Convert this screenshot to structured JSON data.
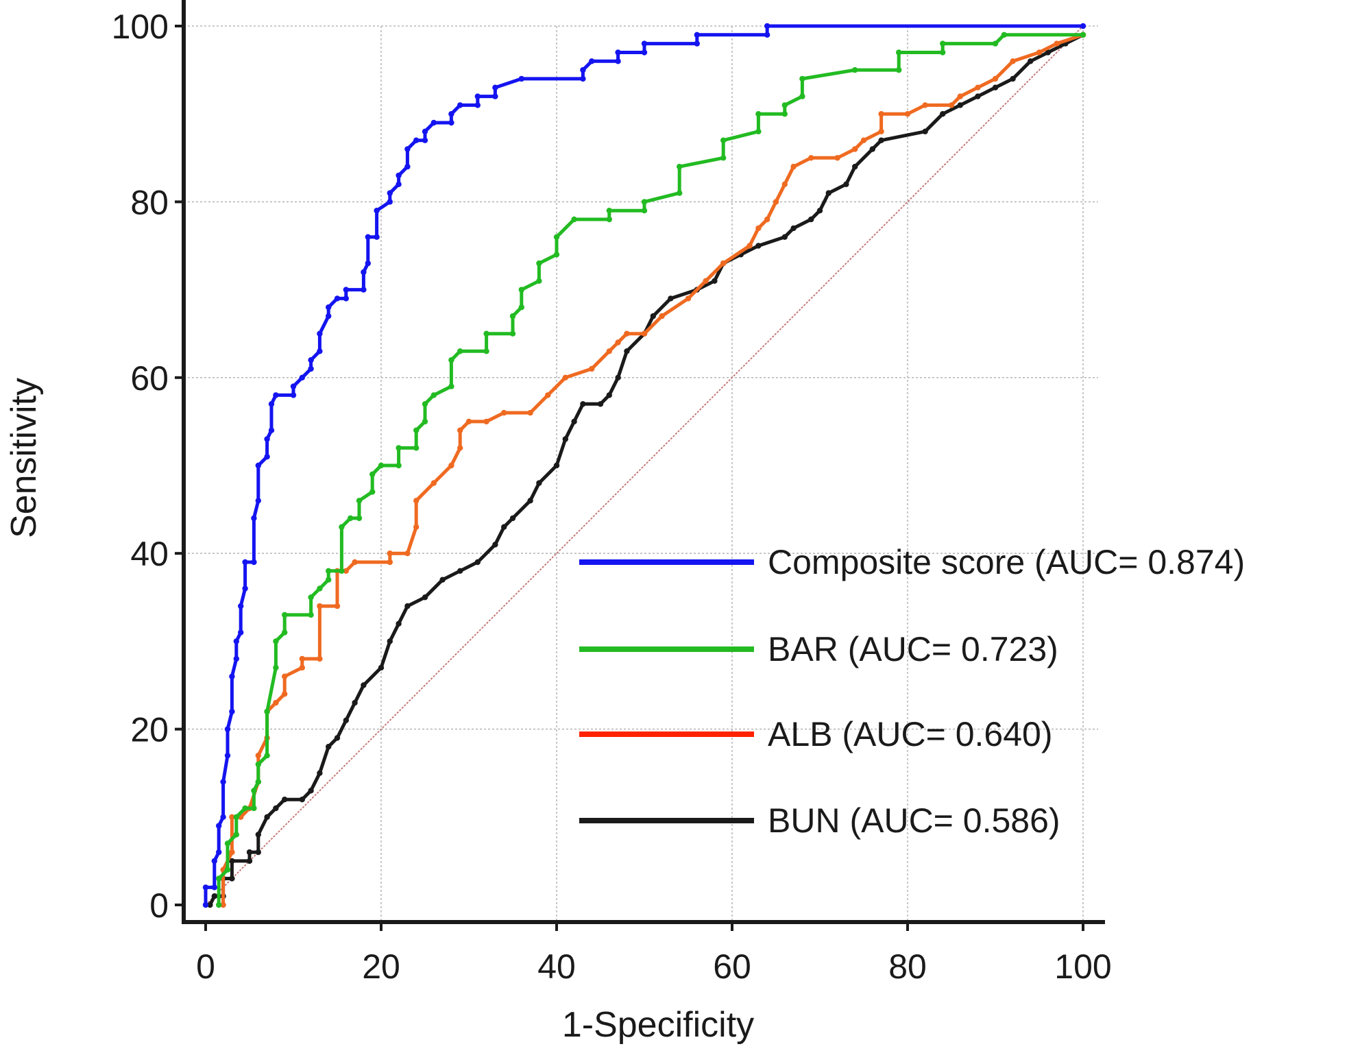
{
  "chart_data": {
    "type": "line",
    "xlabel": "1-Specificity",
    "ylabel": "Sensitivity",
    "xlim": [
      0,
      100
    ],
    "ylim": [
      0,
      100
    ],
    "x_ticks": [
      "0",
      "20",
      "40",
      "60",
      "80",
      "100"
    ],
    "y_ticks": [
      "0",
      "20",
      "40",
      "60",
      "80",
      "100"
    ],
    "grid": true,
    "legend_position": "lower-right",
    "reference_line": {
      "x": [
        0,
        100
      ],
      "y": [
        0,
        100
      ],
      "color": "#c0706f"
    },
    "series": [
      {
        "name": "Composite score (AUC= 0.874)",
        "color": "#1414f0",
        "points": [
          [
            0,
            0
          ],
          [
            0,
            2
          ],
          [
            1,
            2
          ],
          [
            1,
            5
          ],
          [
            1.5,
            6
          ],
          [
            1.5,
            9
          ],
          [
            2,
            10
          ],
          [
            2,
            14
          ],
          [
            2.5,
            17
          ],
          [
            2.5,
            20
          ],
          [
            3,
            22
          ],
          [
            3,
            26
          ],
          [
            3.5,
            28
          ],
          [
            3.5,
            30
          ],
          [
            4,
            31
          ],
          [
            4,
            34
          ],
          [
            4.5,
            36
          ],
          [
            4.5,
            39
          ],
          [
            5.5,
            39
          ],
          [
            5.5,
            44
          ],
          [
            6,
            46
          ],
          [
            6,
            50
          ],
          [
            7,
            51
          ],
          [
            7,
            53
          ],
          [
            7.5,
            54
          ],
          [
            7.5,
            57
          ],
          [
            8,
            58
          ],
          [
            10,
            58
          ],
          [
            10,
            59
          ],
          [
            11,
            60
          ],
          [
            12,
            61
          ],
          [
            12,
            62
          ],
          [
            13,
            63
          ],
          [
            13,
            65
          ],
          [
            14,
            67
          ],
          [
            14,
            68
          ],
          [
            15,
            69
          ],
          [
            16,
            69
          ],
          [
            16,
            70
          ],
          [
            18,
            70
          ],
          [
            18,
            72
          ],
          [
            18.5,
            73
          ],
          [
            18.5,
            76
          ],
          [
            19.5,
            76
          ],
          [
            19.5,
            79
          ],
          [
            21,
            80
          ],
          [
            21,
            81
          ],
          [
            22,
            82
          ],
          [
            22,
            83
          ],
          [
            23,
            84
          ],
          [
            23,
            86
          ],
          [
            24,
            87
          ],
          [
            25,
            87
          ],
          [
            25,
            88
          ],
          [
            26,
            89
          ],
          [
            28,
            89
          ],
          [
            28,
            90
          ],
          [
            29,
            91
          ],
          [
            31,
            91
          ],
          [
            31,
            92
          ],
          [
            33,
            92
          ],
          [
            33,
            93
          ],
          [
            36,
            94
          ],
          [
            43,
            94
          ],
          [
            43,
            95
          ],
          [
            44,
            96
          ],
          [
            47,
            96
          ],
          [
            47,
            97
          ],
          [
            50,
            97
          ],
          [
            50,
            98
          ],
          [
            56,
            98
          ],
          [
            56,
            99
          ],
          [
            64,
            99
          ],
          [
            64,
            100
          ],
          [
            100,
            100
          ]
        ]
      },
      {
        "name": "BAR (AUC= 0.723)",
        "color": "#22bb22",
        "points": [
          [
            1.5,
            0
          ],
          [
            1.5,
            3
          ],
          [
            2.5,
            4
          ],
          [
            2.5,
            7
          ],
          [
            3.5,
            8
          ],
          [
            3.5,
            10
          ],
          [
            4.5,
            11
          ],
          [
            5.5,
            11
          ],
          [
            5.5,
            13
          ],
          [
            6,
            14
          ],
          [
            6,
            16
          ],
          [
            7,
            17
          ],
          [
            7,
            22
          ],
          [
            8,
            27
          ],
          [
            8,
            30
          ],
          [
            9,
            31
          ],
          [
            9,
            33
          ],
          [
            12,
            33
          ],
          [
            12,
            35
          ],
          [
            13,
            36
          ],
          [
            14,
            37
          ],
          [
            14,
            38
          ],
          [
            15.5,
            38
          ],
          [
            15.5,
            43
          ],
          [
            16.5,
            44
          ],
          [
            17.5,
            44
          ],
          [
            17.5,
            46
          ],
          [
            19,
            47
          ],
          [
            19,
            49
          ],
          [
            20,
            50
          ],
          [
            22,
            50
          ],
          [
            22,
            52
          ],
          [
            24,
            52
          ],
          [
            24,
            54
          ],
          [
            25,
            55
          ],
          [
            25,
            57
          ],
          [
            26,
            58
          ],
          [
            28,
            59
          ],
          [
            28,
            62
          ],
          [
            29,
            63
          ],
          [
            32,
            63
          ],
          [
            32,
            65
          ],
          [
            35,
            65
          ],
          [
            35,
            67
          ],
          [
            36,
            68
          ],
          [
            36,
            70
          ],
          [
            38,
            71
          ],
          [
            38,
            73
          ],
          [
            40,
            74
          ],
          [
            40,
            76
          ],
          [
            42,
            78
          ],
          [
            46,
            78
          ],
          [
            46,
            79
          ],
          [
            50,
            79
          ],
          [
            50,
            80
          ],
          [
            54,
            81
          ],
          [
            54,
            84
          ],
          [
            59,
            85
          ],
          [
            59,
            87
          ],
          [
            63,
            88
          ],
          [
            63,
            90
          ],
          [
            66,
            90
          ],
          [
            66,
            91
          ],
          [
            68,
            92
          ],
          [
            68,
            94
          ],
          [
            74,
            95
          ],
          [
            79,
            95
          ],
          [
            79,
            97
          ],
          [
            84,
            97
          ],
          [
            84,
            98
          ],
          [
            90,
            98
          ],
          [
            91,
            99
          ],
          [
            100,
            99
          ]
        ]
      },
      {
        "name": "ALB (AUC= 0.640)",
        "color": "#ff2200",
        "line_color": "#ef6a21",
        "points": [
          [
            2,
            0
          ],
          [
            2,
            4
          ],
          [
            3,
            6
          ],
          [
            3,
            10
          ],
          [
            4,
            10
          ],
          [
            5,
            11
          ],
          [
            6,
            14
          ],
          [
            6,
            17
          ],
          [
            7,
            19
          ],
          [
            7,
            22
          ],
          [
            8,
            23
          ],
          [
            9,
            24
          ],
          [
            9,
            26
          ],
          [
            11,
            27
          ],
          [
            11,
            28
          ],
          [
            13,
            28
          ],
          [
            13,
            34
          ],
          [
            15,
            34
          ],
          [
            15,
            38
          ],
          [
            16,
            38
          ],
          [
            17,
            39
          ],
          [
            21,
            39
          ],
          [
            21,
            40
          ],
          [
            23,
            40
          ],
          [
            24,
            43
          ],
          [
            24,
            46
          ],
          [
            26,
            48
          ],
          [
            28,
            50
          ],
          [
            29,
            52
          ],
          [
            29,
            54
          ],
          [
            30,
            55
          ],
          [
            32,
            55
          ],
          [
            34,
            56
          ],
          [
            37,
            56
          ],
          [
            39,
            58
          ],
          [
            41,
            60
          ],
          [
            44,
            61
          ],
          [
            46,
            63
          ],
          [
            47,
            64
          ],
          [
            48,
            65
          ],
          [
            50,
            65
          ],
          [
            52,
            67
          ],
          [
            55,
            69
          ],
          [
            57,
            71
          ],
          [
            59,
            73
          ],
          [
            62,
            75
          ],
          [
            63,
            77
          ],
          [
            64,
            78
          ],
          [
            65,
            80
          ],
          [
            66,
            82
          ],
          [
            67,
            84
          ],
          [
            69,
            85
          ],
          [
            72,
            85
          ],
          [
            74,
            86
          ],
          [
            75,
            87
          ],
          [
            77,
            88
          ],
          [
            77,
            90
          ],
          [
            80,
            90
          ],
          [
            82,
            91
          ],
          [
            85,
            91
          ],
          [
            86,
            92
          ],
          [
            88,
            93
          ],
          [
            90,
            94
          ],
          [
            92,
            96
          ],
          [
            95,
            97
          ],
          [
            97,
            98
          ],
          [
            100,
            99
          ]
        ]
      },
      {
        "name": "BUN (AUC= 0.586)",
        "color": "#1a1a1a",
        "points": [
          [
            0.5,
            0
          ],
          [
            1,
            1
          ],
          [
            2,
            1
          ],
          [
            2,
            3
          ],
          [
            3,
            3
          ],
          [
            3,
            5
          ],
          [
            5,
            5
          ],
          [
            5,
            6
          ],
          [
            6,
            6
          ],
          [
            6,
            8
          ],
          [
            7,
            10
          ],
          [
            8,
            11
          ],
          [
            9,
            12
          ],
          [
            11,
            12
          ],
          [
            12,
            13
          ],
          [
            13,
            15
          ],
          [
            14,
            18
          ],
          [
            15,
            19
          ],
          [
            16,
            21
          ],
          [
            17,
            23
          ],
          [
            18,
            25
          ],
          [
            20,
            27
          ],
          [
            21,
            30
          ],
          [
            22,
            32
          ],
          [
            23,
            34
          ],
          [
            25,
            35
          ],
          [
            27,
            37
          ],
          [
            29,
            38
          ],
          [
            31,
            39
          ],
          [
            33,
            41
          ],
          [
            34,
            43
          ],
          [
            35,
            44
          ],
          [
            37,
            46
          ],
          [
            38,
            48
          ],
          [
            40,
            50
          ],
          [
            41,
            53
          ],
          [
            42,
            55
          ],
          [
            43,
            57
          ],
          [
            45,
            57
          ],
          [
            46,
            58
          ],
          [
            47,
            60
          ],
          [
            48,
            63
          ],
          [
            50,
            65
          ],
          [
            51,
            67
          ],
          [
            53,
            69
          ],
          [
            56,
            70
          ],
          [
            58,
            71
          ],
          [
            59,
            73
          ],
          [
            61,
            74
          ],
          [
            63,
            75
          ],
          [
            66,
            76
          ],
          [
            67,
            77
          ],
          [
            69,
            78
          ],
          [
            70,
            79
          ],
          [
            71,
            81
          ],
          [
            73,
            82
          ],
          [
            74,
            84
          ],
          [
            76,
            86
          ],
          [
            77,
            87
          ],
          [
            82,
            88
          ],
          [
            84,
            90
          ],
          [
            86,
            91
          ],
          [
            88,
            92
          ],
          [
            90,
            93
          ],
          [
            92,
            94
          ],
          [
            94,
            96
          ],
          [
            96,
            97
          ],
          [
            98,
            98
          ],
          [
            100,
            99
          ]
        ]
      }
    ]
  }
}
